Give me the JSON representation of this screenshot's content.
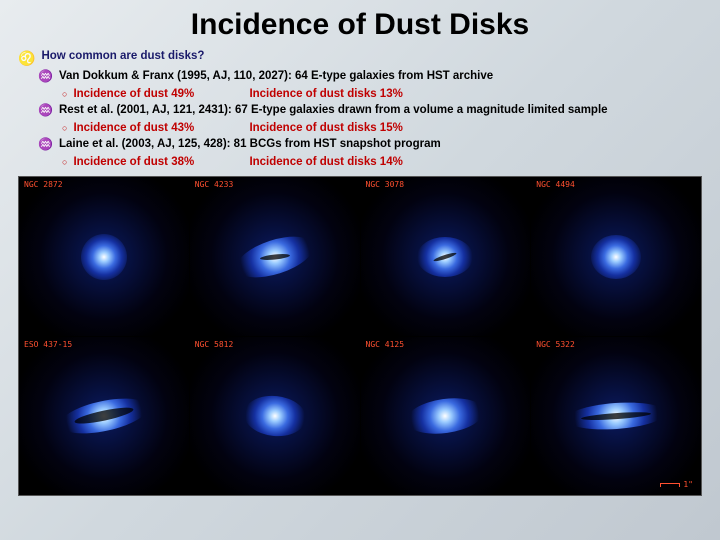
{
  "title": "Incidence of Dust Disks",
  "q": "How common are dust disks?",
  "studies": [
    {
      "ref": "Van Dokkum & Franx (1995, AJ, 110, 2027): 64 E-type galaxies from HST archive",
      "dust": "Incidence of dust 49%",
      "disk": "Incidence of dust disks 13%"
    },
    {
      "ref": "Rest et al. (2001, AJ, 121, 2431): 67 E-type galaxies drawn from a volume a magnitude limited sample",
      "dust": "Incidence of dust 43%",
      "disk": "Incidence of dust disks 15%"
    },
    {
      "ref": "Laine et al. (2003, AJ, 125, 428): 81 BCGs from HST snapshot program",
      "dust": "Incidence of dust 38%",
      "disk": "Incidence of dust disks 14%"
    }
  ],
  "cells": [
    {
      "label": "NGC 2872"
    },
    {
      "label": "NGC 4233"
    },
    {
      "label": "NGC 3078"
    },
    {
      "label": "NGC 4494"
    },
    {
      "label": "ESO 437-15"
    },
    {
      "label": "NGC 5812"
    },
    {
      "label": "NGC 4125"
    },
    {
      "label": "NGC 5322"
    }
  ],
  "scale": "1\"",
  "sym": {
    "l1": "♌",
    "l2": "♒",
    "l3": "○"
  }
}
